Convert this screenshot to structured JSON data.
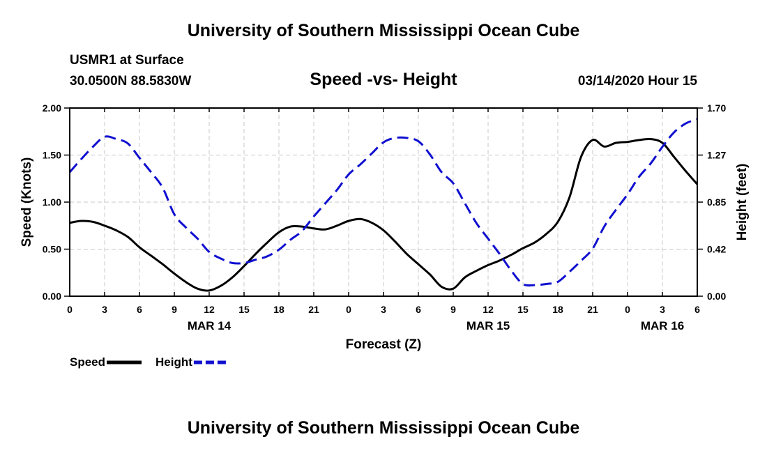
{
  "header": {
    "title": "University of Southern Mississippi Ocean Cube",
    "station": "USMR1 at Surface",
    "coords": "30.0500N 88.5830W",
    "chart_title": "Speed -vs- Height",
    "run_time": "03/14/2020 Hour 15"
  },
  "footer": {
    "title": "University of Southern Mississippi Ocean Cube"
  },
  "colors": {
    "speed": "#000000",
    "height": "#1010d0",
    "grid": "#c8c8c8"
  },
  "chart_data": {
    "type": "line",
    "title": "Speed -vs- Height",
    "xlabel": "Forecast (Z)",
    "ylabel": "Speed (Knots)",
    "y2label": "Height (feet)",
    "grid": true,
    "xlim": [
      0,
      54
    ],
    "ylim": [
      0,
      2.0
    ],
    "y2lim": [
      0,
      1.7
    ],
    "x_ticks": [
      0,
      3,
      6,
      9,
      12,
      15,
      18,
      21,
      24,
      27,
      30,
      33,
      36,
      39,
      42,
      45,
      48,
      51,
      54
    ],
    "x_tick_labels": [
      "0",
      "3",
      "6",
      "9",
      "12",
      "15",
      "18",
      "21",
      "0",
      "3",
      "6",
      "9",
      "12",
      "15",
      "18",
      "21",
      "0",
      "3",
      "6"
    ],
    "y_ticks": [
      0,
      0.5,
      1.0,
      1.5,
      2.0
    ],
    "y_tick_labels": [
      "0.00",
      "0.50",
      "1.00",
      "1.50",
      "2.00"
    ],
    "y2_ticks": [
      0,
      0.425,
      0.85,
      1.275,
      1.7
    ],
    "y2_tick_labels": [
      "0.00",
      "0.42",
      "0.85",
      "1.27",
      "1.70"
    ],
    "day_labels": [
      {
        "x": 12,
        "label": "MAR 14"
      },
      {
        "x": 36,
        "label": "MAR 15"
      },
      {
        "x": 51,
        "label": "MAR 16"
      }
    ],
    "series": [
      {
        "name": "Speed",
        "axis": "left",
        "style": "solid",
        "x": [
          0,
          1,
          2,
          3,
          4,
          5,
          6,
          7,
          8,
          9,
          10,
          11,
          12,
          13,
          14,
          15,
          16,
          17,
          18,
          19,
          20,
          21,
          22,
          23,
          24,
          25,
          26,
          27,
          28,
          29,
          30,
          31,
          32,
          33,
          34,
          35,
          36,
          37,
          38,
          39,
          40,
          41,
          42,
          43,
          44,
          45,
          46,
          47,
          48,
          49,
          50,
          51,
          52,
          53,
          54
        ],
        "values": [
          0.78,
          0.8,
          0.79,
          0.75,
          0.7,
          0.63,
          0.52,
          0.43,
          0.34,
          0.24,
          0.15,
          0.08,
          0.06,
          0.11,
          0.2,
          0.32,
          0.45,
          0.57,
          0.68,
          0.74,
          0.74,
          0.72,
          0.71,
          0.75,
          0.8,
          0.82,
          0.78,
          0.7,
          0.58,
          0.45,
          0.34,
          0.23,
          0.1,
          0.08,
          0.2,
          0.27,
          0.33,
          0.38,
          0.44,
          0.51,
          0.57,
          0.66,
          0.79,
          1.05,
          1.48,
          1.66,
          1.59,
          1.63,
          1.64,
          1.66,
          1.67,
          1.63,
          1.48,
          1.33,
          1.19
        ]
      },
      {
        "name": "Height",
        "axis": "right",
        "style": "dashed",
        "x": [
          0,
          1,
          2,
          3,
          4,
          5,
          6,
          7,
          8,
          9,
          10,
          11,
          12,
          13,
          14,
          15,
          16,
          17,
          18,
          19,
          20,
          21,
          22,
          23,
          24,
          25,
          26,
          27,
          28,
          29,
          30,
          31,
          32,
          33,
          34,
          35,
          36,
          37,
          38,
          39,
          40,
          41,
          42,
          43,
          44,
          45,
          46,
          47,
          48,
          49,
          50,
          51,
          52,
          53,
          54
        ],
        "values": [
          1.12,
          1.24,
          1.35,
          1.44,
          1.42,
          1.38,
          1.25,
          1.12,
          0.98,
          0.74,
          0.62,
          0.52,
          0.4,
          0.34,
          0.3,
          0.3,
          0.33,
          0.36,
          0.42,
          0.51,
          0.59,
          0.72,
          0.84,
          0.96,
          1.1,
          1.19,
          1.29,
          1.39,
          1.43,
          1.43,
          1.4,
          1.28,
          1.12,
          1.02,
          0.84,
          0.66,
          0.52,
          0.38,
          0.23,
          0.11,
          0.1,
          0.11,
          0.13,
          0.22,
          0.32,
          0.43,
          0.63,
          0.78,
          0.92,
          1.08,
          1.2,
          1.35,
          1.48,
          1.56,
          1.6
        ]
      }
    ],
    "legend": [
      {
        "name": "Speed",
        "style": "solid"
      },
      {
        "name": "Height",
        "style": "dashed"
      }
    ]
  }
}
